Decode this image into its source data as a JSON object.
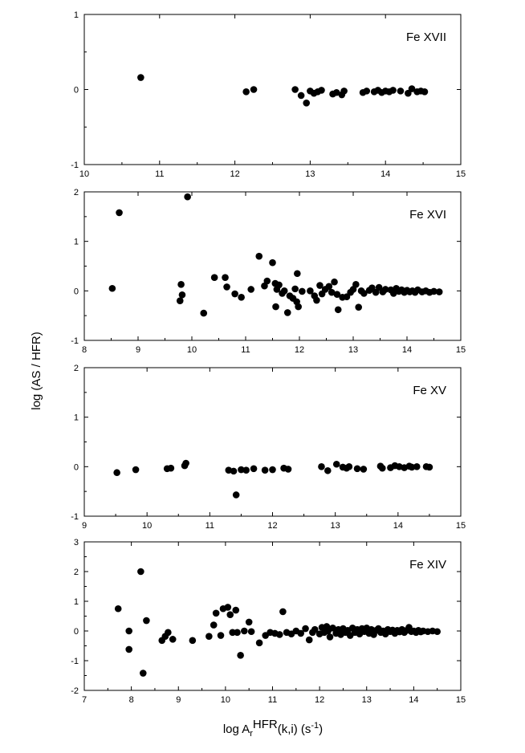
{
  "figure": {
    "ylabel": "log (AS / HFR)",
    "xlabel_main": "log A",
    "xlabel_sub": "r",
    "xlabel_sup": "HFR",
    "xlabel_rest": "(k,i) (s",
    "xlabel_exp": "-1",
    "xlabel_close": ")"
  },
  "chart_data": [
    {
      "type": "scatter",
      "title": "Fe XVII",
      "xlim": [
        10,
        15
      ],
      "ylim": [
        -1,
        1
      ],
      "xticks": [
        10,
        11,
        12,
        13,
        14,
        15
      ],
      "yticks": [
        -1,
        0,
        1
      ],
      "points": [
        [
          10.75,
          0.16
        ],
        [
          12.15,
          -0.03
        ],
        [
          12.25,
          0.0
        ],
        [
          12.8,
          0.0
        ],
        [
          12.88,
          -0.08
        ],
        [
          12.95,
          -0.18
        ],
        [
          13.0,
          -0.02
        ],
        [
          13.05,
          -0.05
        ],
        [
          13.1,
          -0.03
        ],
        [
          13.15,
          -0.01
        ],
        [
          13.3,
          -0.06
        ],
        [
          13.35,
          -0.04
        ],
        [
          13.42,
          -0.07
        ],
        [
          13.45,
          -0.02
        ],
        [
          13.7,
          -0.04
        ],
        [
          13.75,
          -0.02
        ],
        [
          13.85,
          -0.03
        ],
        [
          13.9,
          -0.01
        ],
        [
          13.95,
          -0.04
        ],
        [
          14.0,
          -0.02
        ],
        [
          14.05,
          -0.03
        ],
        [
          14.1,
          -0.01
        ],
        [
          14.2,
          -0.02
        ],
        [
          14.3,
          -0.05
        ],
        [
          14.35,
          0.01
        ],
        [
          14.42,
          -0.03
        ],
        [
          14.47,
          -0.02
        ],
        [
          14.52,
          -0.03
        ]
      ]
    },
    {
      "type": "scatter",
      "title": "Fe XVI",
      "xlim": [
        8,
        15
      ],
      "ylim": [
        -1,
        2
      ],
      "xticks": [
        8,
        9,
        10,
        11,
        12,
        13,
        14,
        15
      ],
      "yticks": [
        -1,
        0,
        1,
        2
      ],
      "points": [
        [
          8.52,
          0.05
        ],
        [
          8.65,
          1.58
        ],
        [
          9.8,
          0.13
        ],
        [
          9.82,
          -0.08
        ],
        [
          9.78,
          -0.2
        ],
        [
          9.92,
          1.9
        ],
        [
          10.22,
          -0.45
        ],
        [
          10.42,
          0.27
        ],
        [
          10.62,
          0.27
        ],
        [
          10.65,
          0.08
        ],
        [
          10.8,
          -0.06
        ],
        [
          10.92,
          -0.13
        ],
        [
          11.1,
          0.03
        ],
        [
          11.25,
          0.7
        ],
        [
          11.35,
          0.1
        ],
        [
          11.4,
          0.2
        ],
        [
          11.5,
          0.57
        ],
        [
          11.55,
          0.15
        ],
        [
          11.58,
          0.03
        ],
        [
          11.56,
          -0.32
        ],
        [
          11.62,
          0.12
        ],
        [
          11.68,
          -0.05
        ],
        [
          11.72,
          0.0
        ],
        [
          11.78,
          -0.44
        ],
        [
          11.82,
          -0.1
        ],
        [
          11.88,
          -0.15
        ],
        [
          11.92,
          0.04
        ],
        [
          11.95,
          -0.22
        ],
        [
          11.96,
          0.35
        ],
        [
          11.98,
          -0.32
        ],
        [
          12.05,
          -0.01
        ],
        [
          12.2,
          0.0
        ],
        [
          12.28,
          -0.1
        ],
        [
          12.32,
          -0.19
        ],
        [
          12.38,
          0.11
        ],
        [
          12.42,
          -0.06
        ],
        [
          12.48,
          0.03
        ],
        [
          12.55,
          0.09
        ],
        [
          12.6,
          -0.03
        ],
        [
          12.65,
          0.18
        ],
        [
          12.7,
          -0.07
        ],
        [
          12.72,
          -0.38
        ],
        [
          12.8,
          -0.13
        ],
        [
          12.88,
          -0.12
        ],
        [
          12.95,
          -0.03
        ],
        [
          13.0,
          0.03
        ],
        [
          13.05,
          0.13
        ],
        [
          13.1,
          -0.33
        ],
        [
          13.15,
          0.0
        ],
        [
          13.2,
          -0.05
        ],
        [
          13.3,
          0.01
        ],
        [
          13.35,
          0.06
        ],
        [
          13.42,
          -0.03
        ],
        [
          13.48,
          0.07
        ],
        [
          13.55,
          -0.02
        ],
        [
          13.6,
          0.03
        ],
        [
          13.7,
          0.02
        ],
        [
          13.75,
          -0.05
        ],
        [
          13.8,
          0.05
        ],
        [
          13.85,
          -0.01
        ],
        [
          13.9,
          0.02
        ],
        [
          13.95,
          -0.03
        ],
        [
          14.0,
          0.01
        ],
        [
          14.05,
          -0.02
        ],
        [
          14.1,
          0.0
        ],
        [
          14.15,
          -0.03
        ],
        [
          14.2,
          0.02
        ],
        [
          14.28,
          -0.02
        ],
        [
          14.35,
          0.0
        ],
        [
          14.42,
          -0.03
        ],
        [
          14.5,
          -0.01
        ],
        [
          14.6,
          -0.02
        ]
      ]
    },
    {
      "type": "scatter",
      "title": "Fe XV",
      "xlim": [
        9,
        15
      ],
      "ylim": [
        -1,
        2
      ],
      "xticks": [
        9,
        10,
        11,
        12,
        13,
        14,
        15
      ],
      "yticks": [
        -1,
        0,
        1,
        2
      ],
      "points": [
        [
          9.52,
          -0.12
        ],
        [
          9.82,
          -0.06
        ],
        [
          10.32,
          -0.04
        ],
        [
          10.38,
          -0.03
        ],
        [
          10.6,
          0.02
        ],
        [
          10.62,
          0.07
        ],
        [
          11.3,
          -0.07
        ],
        [
          11.38,
          -0.09
        ],
        [
          11.42,
          -0.57
        ],
        [
          11.5,
          -0.06
        ],
        [
          11.58,
          -0.07
        ],
        [
          11.7,
          -0.04
        ],
        [
          11.88,
          -0.07
        ],
        [
          12.0,
          -0.06
        ],
        [
          12.18,
          -0.03
        ],
        [
          12.25,
          -0.05
        ],
        [
          12.78,
          0.0
        ],
        [
          12.88,
          -0.08
        ],
        [
          13.02,
          0.05
        ],
        [
          13.12,
          -0.01
        ],
        [
          13.18,
          -0.03
        ],
        [
          13.22,
          0.0
        ],
        [
          13.35,
          -0.04
        ],
        [
          13.45,
          -0.05
        ],
        [
          13.72,
          0.01
        ],
        [
          13.75,
          -0.03
        ],
        [
          13.88,
          -0.02
        ],
        [
          13.95,
          0.02
        ],
        [
          14.02,
          0.0
        ],
        [
          14.1,
          -0.02
        ],
        [
          14.18,
          0.01
        ],
        [
          14.22,
          -0.01
        ],
        [
          14.3,
          0.0
        ],
        [
          14.45,
          0.0
        ],
        [
          14.5,
          -0.01
        ]
      ]
    },
    {
      "type": "scatter",
      "title": "Fe XIV",
      "xlim": [
        7,
        15
      ],
      "ylim": [
        -2,
        3
      ],
      "xticks": [
        7,
        8,
        9,
        10,
        11,
        12,
        13,
        14,
        15
      ],
      "yticks": [
        -2,
        -1,
        0,
        1,
        2,
        3
      ],
      "points": [
        [
          7.72,
          0.75
        ],
        [
          7.95,
          0.0
        ],
        [
          7.95,
          -0.62
        ],
        [
          8.2,
          2.0
        ],
        [
          8.25,
          -1.42
        ],
        [
          8.32,
          0.35
        ],
        [
          8.65,
          -0.32
        ],
        [
          8.72,
          -0.18
        ],
        [
          8.78,
          -0.05
        ],
        [
          8.88,
          -0.28
        ],
        [
          9.3,
          -0.32
        ],
        [
          9.65,
          -0.18
        ],
        [
          9.75,
          0.2
        ],
        [
          9.8,
          0.6
        ],
        [
          9.9,
          -0.15
        ],
        [
          9.95,
          0.75
        ],
        [
          10.05,
          0.8
        ],
        [
          10.1,
          0.55
        ],
        [
          10.15,
          -0.05
        ],
        [
          10.22,
          0.7
        ],
        [
          10.25,
          -0.05
        ],
        [
          10.32,
          -0.82
        ],
        [
          10.4,
          0.0
        ],
        [
          10.5,
          0.3
        ],
        [
          10.55,
          -0.02
        ],
        [
          10.72,
          -0.4
        ],
        [
          10.85,
          -0.15
        ],
        [
          10.95,
          -0.05
        ],
        [
          11.05,
          -0.08
        ],
        [
          11.15,
          -0.12
        ],
        [
          11.22,
          0.65
        ],
        [
          11.3,
          -0.05
        ],
        [
          11.4,
          -0.1
        ],
        [
          11.5,
          0.0
        ],
        [
          11.6,
          -0.08
        ],
        [
          11.7,
          0.08
        ],
        [
          11.78,
          -0.3
        ],
        [
          11.85,
          -0.05
        ],
        [
          11.9,
          0.05
        ],
        [
          12.0,
          -0.1
        ],
        [
          12.05,
          0.12
        ],
        [
          12.1,
          -0.05
        ],
        [
          12.15,
          0.15
        ],
        [
          12.18,
          0.0
        ],
        [
          12.22,
          -0.2
        ],
        [
          12.28,
          0.1
        ],
        [
          12.35,
          -0.08
        ],
        [
          12.4,
          0.05
        ],
        [
          12.45,
          -0.12
        ],
        [
          12.5,
          0.08
        ],
        [
          12.55,
          -0.05
        ],
        [
          12.6,
          0.02
        ],
        [
          12.65,
          -0.15
        ],
        [
          12.7,
          0.1
        ],
        [
          12.75,
          -0.05
        ],
        [
          12.8,
          0.05
        ],
        [
          12.85,
          -0.1
        ],
        [
          12.9,
          0.08
        ],
        [
          12.95,
          -0.02
        ],
        [
          13.0,
          0.1
        ],
        [
          13.05,
          -0.08
        ],
        [
          13.1,
          0.05
        ],
        [
          13.15,
          -0.12
        ],
        [
          13.2,
          0.02
        ],
        [
          13.25,
          0.08
        ],
        [
          13.3,
          -0.05
        ],
        [
          13.35,
          0.0
        ],
        [
          13.4,
          -0.1
        ],
        [
          13.45,
          0.05
        ],
        [
          13.5,
          -0.02
        ],
        [
          13.55,
          0.03
        ],
        [
          13.6,
          -0.08
        ],
        [
          13.65,
          0.02
        ],
        [
          13.7,
          -0.03
        ],
        [
          13.75,
          0.05
        ],
        [
          13.8,
          -0.05
        ],
        [
          13.85,
          0.02
        ],
        [
          13.9,
          0.12
        ],
        [
          13.95,
          -0.02
        ],
        [
          14.0,
          0.0
        ],
        [
          14.05,
          -0.05
        ],
        [
          14.1,
          0.02
        ],
        [
          14.15,
          -0.03
        ],
        [
          14.2,
          0.0
        ],
        [
          14.3,
          -0.02
        ],
        [
          14.4,
          0.0
        ],
        [
          14.5,
          -0.02
        ]
      ]
    }
  ]
}
